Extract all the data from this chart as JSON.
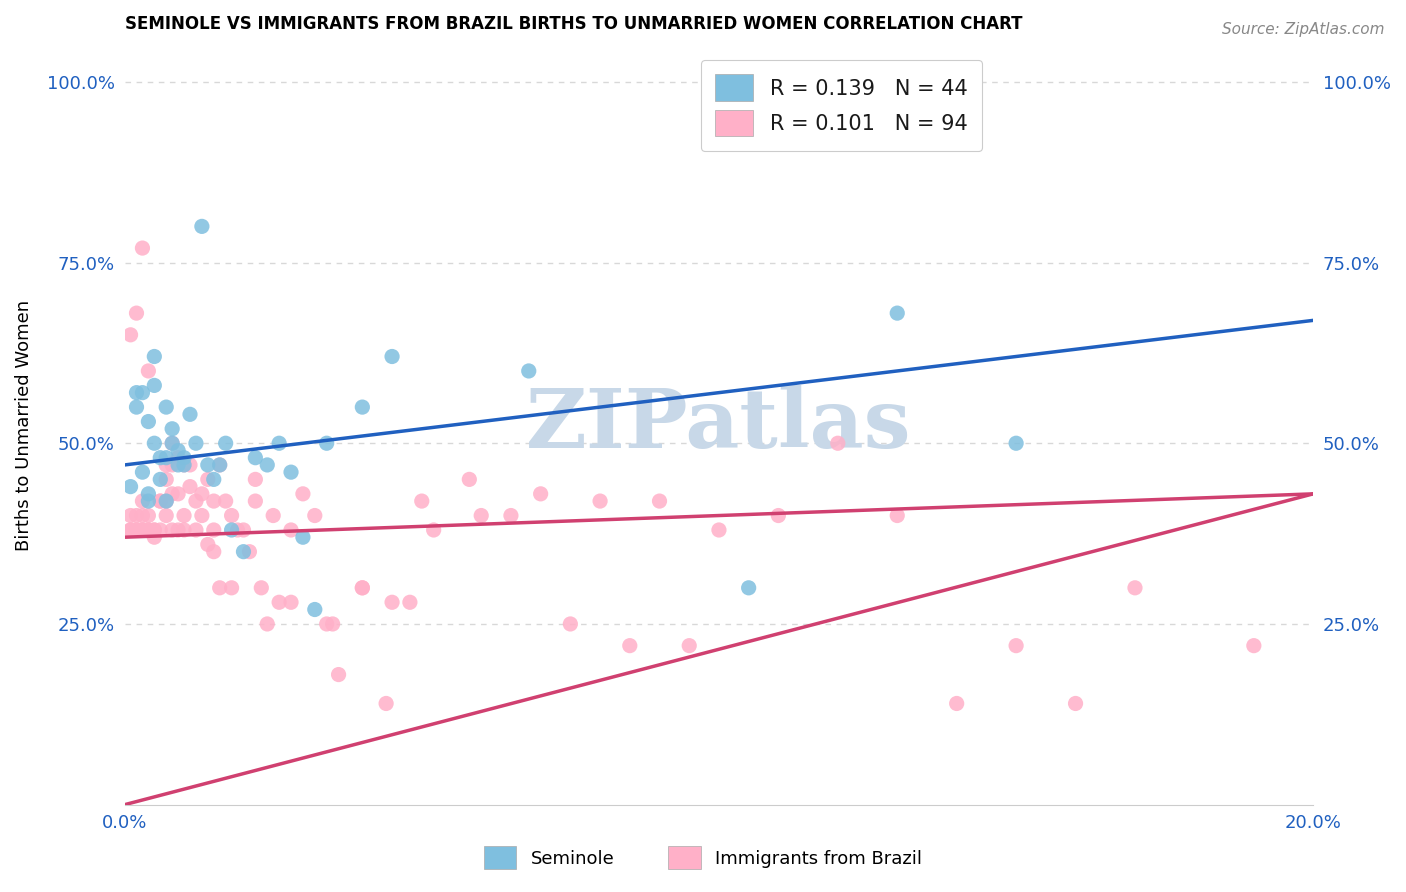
{
  "title": "SEMINOLE VS IMMIGRANTS FROM BRAZIL BIRTHS TO UNMARRIED WOMEN CORRELATION CHART",
  "source": "Source: ZipAtlas.com",
  "ylabel": "Births to Unmarried Women",
  "xlabel_seminole": "Seminole",
  "xlabel_brazil": "Immigrants from Brazil",
  "xlim": [
    0.0,
    0.2
  ],
  "ylim": [
    0.0,
    1.05
  ],
  "yticks": [
    0.25,
    0.5,
    0.75,
    1.0
  ],
  "ytick_labels": [
    "25.0%",
    "50.0%",
    "75.0%",
    "100.0%"
  ],
  "xticks": [
    0.0,
    0.04,
    0.08,
    0.12,
    0.16,
    0.2
  ],
  "xtick_labels": [
    "0.0%",
    "",
    "",
    "",
    "",
    "20.0%"
  ],
  "legend_R_blue": "R = 0.139",
  "legend_N_blue": "N = 44",
  "legend_R_pink": "R = 0.101",
  "legend_N_pink": "N = 94",
  "color_blue": "#7fbfdf",
  "color_pink": "#ffb0c8",
  "line_color_blue": "#2060c0",
  "line_color_pink": "#d04070",
  "watermark": "ZIPatlas",
  "watermark_color": "#c8d8e8",
  "background_color": "#ffffff",
  "grid_color": "#d8d8d8",
  "blue_trend_x0": 0.0,
  "blue_trend_y0": 0.47,
  "blue_trend_x1": 0.2,
  "blue_trend_y1": 0.67,
  "pink_trend_x0": 0.0,
  "pink_trend_y0": 0.37,
  "pink_trend_x1": 0.2,
  "pink_trend_y1": 0.43,
  "seminole_x": [
    0.001,
    0.002,
    0.002,
    0.003,
    0.003,
    0.004,
    0.004,
    0.004,
    0.005,
    0.005,
    0.005,
    0.006,
    0.006,
    0.007,
    0.007,
    0.007,
    0.008,
    0.008,
    0.009,
    0.009,
    0.01,
    0.01,
    0.011,
    0.012,
    0.013,
    0.014,
    0.015,
    0.016,
    0.017,
    0.018,
    0.02,
    0.022,
    0.024,
    0.026,
    0.028,
    0.03,
    0.032,
    0.034,
    0.04,
    0.045,
    0.068,
    0.105,
    0.13,
    0.15
  ],
  "seminole_y": [
    0.44,
    0.57,
    0.55,
    0.46,
    0.57,
    0.43,
    0.42,
    0.53,
    0.58,
    0.5,
    0.62,
    0.48,
    0.45,
    0.55,
    0.48,
    0.42,
    0.52,
    0.5,
    0.49,
    0.47,
    0.48,
    0.47,
    0.54,
    0.5,
    0.8,
    0.47,
    0.45,
    0.47,
    0.5,
    0.38,
    0.35,
    0.48,
    0.47,
    0.5,
    0.46,
    0.37,
    0.27,
    0.5,
    0.55,
    0.62,
    0.6,
    0.3,
    0.68,
    0.5
  ],
  "brazil_x": [
    0.001,
    0.001,
    0.001,
    0.002,
    0.002,
    0.002,
    0.003,
    0.003,
    0.003,
    0.003,
    0.004,
    0.004,
    0.004,
    0.005,
    0.005,
    0.005,
    0.006,
    0.006,
    0.006,
    0.007,
    0.007,
    0.007,
    0.007,
    0.008,
    0.008,
    0.008,
    0.008,
    0.009,
    0.009,
    0.009,
    0.01,
    0.01,
    0.01,
    0.011,
    0.011,
    0.012,
    0.012,
    0.013,
    0.013,
    0.014,
    0.014,
    0.015,
    0.015,
    0.015,
    0.016,
    0.016,
    0.017,
    0.018,
    0.018,
    0.019,
    0.02,
    0.021,
    0.022,
    0.023,
    0.024,
    0.025,
    0.026,
    0.028,
    0.03,
    0.032,
    0.034,
    0.036,
    0.04,
    0.044,
    0.048,
    0.052,
    0.058,
    0.065,
    0.075,
    0.085,
    0.095,
    0.11,
    0.13,
    0.15,
    0.17,
    0.19,
    0.022,
    0.028,
    0.035,
    0.04,
    0.045,
    0.05,
    0.06,
    0.07,
    0.08,
    0.09,
    0.1,
    0.12,
    0.14,
    0.16,
    0.001,
    0.002,
    0.003,
    0.004
  ],
  "brazil_y": [
    0.38,
    0.38,
    0.4,
    0.38,
    0.4,
    0.38,
    0.38,
    0.38,
    0.4,
    0.42,
    0.38,
    0.4,
    0.38,
    0.38,
    0.38,
    0.37,
    0.42,
    0.38,
    0.42,
    0.4,
    0.42,
    0.45,
    0.47,
    0.43,
    0.5,
    0.47,
    0.38,
    0.43,
    0.48,
    0.38,
    0.4,
    0.47,
    0.38,
    0.44,
    0.47,
    0.38,
    0.42,
    0.4,
    0.43,
    0.36,
    0.45,
    0.35,
    0.38,
    0.42,
    0.3,
    0.47,
    0.42,
    0.3,
    0.4,
    0.38,
    0.38,
    0.35,
    0.42,
    0.3,
    0.25,
    0.4,
    0.28,
    0.28,
    0.43,
    0.4,
    0.25,
    0.18,
    0.3,
    0.14,
    0.28,
    0.38,
    0.45,
    0.4,
    0.25,
    0.22,
    0.22,
    0.4,
    0.4,
    0.22,
    0.3,
    0.22,
    0.45,
    0.38,
    0.25,
    0.3,
    0.28,
    0.42,
    0.4,
    0.43,
    0.42,
    0.42,
    0.38,
    0.5,
    0.14,
    0.14,
    0.65,
    0.68,
    0.77,
    0.6
  ]
}
